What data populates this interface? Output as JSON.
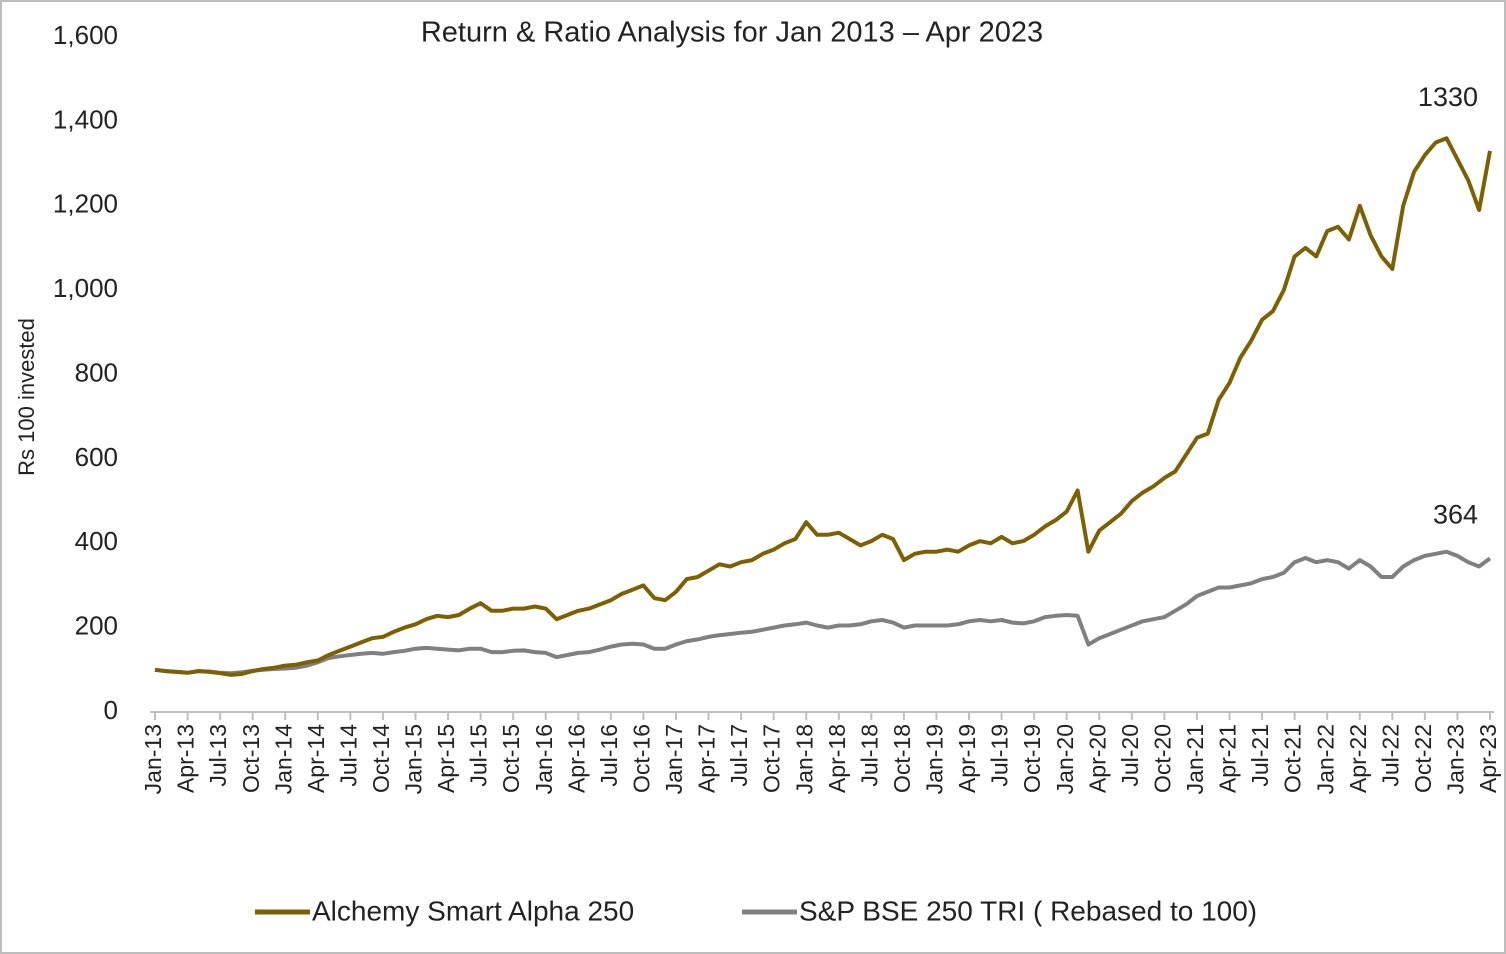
{
  "chart_data": {
    "type": "line",
    "title": "Return & Ratio Analysis for  Jan 2013 – Apr 2023",
    "y_label": "Rs 100 invested",
    "categories": [
      "Jan-13",
      null,
      null,
      "Apr-13",
      null,
      null,
      "Jul-13",
      null,
      null,
      "Oct-13",
      null,
      null,
      "Jan-14",
      null,
      null,
      "Apr-14",
      null,
      null,
      "Jul-14",
      null,
      null,
      "Oct-14",
      null,
      null,
      "Jan-15",
      null,
      null,
      "Apr-15",
      null,
      null,
      "Jul-15",
      null,
      null,
      "Oct-15",
      null,
      null,
      "Jan-16",
      null,
      null,
      "Apr-16",
      null,
      null,
      "Jul-16",
      null,
      null,
      "Oct-16",
      null,
      null,
      "Jan-17",
      null,
      null,
      "Apr-17",
      null,
      null,
      "Jul-17",
      null,
      null,
      "Oct-17",
      null,
      null,
      "Jan-18",
      null,
      null,
      "Apr-18",
      null,
      null,
      "Jul-18",
      null,
      null,
      "Oct-18",
      null,
      null,
      "Jan-19",
      null,
      null,
      "Apr-19",
      null,
      null,
      "Jul-19",
      null,
      null,
      "Oct-19",
      null,
      null,
      "Jan-20",
      null,
      null,
      "Apr-20",
      null,
      null,
      "Jul-20",
      null,
      null,
      "Oct-20",
      null,
      null,
      "Jan-21",
      null,
      null,
      "Apr-21",
      null,
      null,
      "Jul-21",
      null,
      null,
      "Oct-21",
      null,
      null,
      "Jan-22",
      null,
      null,
      "Apr-22",
      null,
      null,
      "Jul-22",
      null,
      null,
      "Oct-22",
      null,
      null,
      "Jan-23",
      null,
      null,
      "Apr-23"
    ],
    "series": [
      {
        "name": "Alchemy Smart Alpha 250",
        "color": "#7f6000",
        "values": [
          100,
          97,
          95,
          93,
          97,
          95,
          92,
          88,
          90,
          97,
          102,
          105,
          110,
          112,
          118,
          122,
          135,
          145,
          155,
          165,
          175,
          178,
          190,
          200,
          208,
          220,
          228,
          225,
          230,
          245,
          258,
          240,
          240,
          245,
          245,
          250,
          245,
          220,
          230,
          240,
          245,
          255,
          265,
          280,
          290,
          300,
          270,
          265,
          285,
          315,
          320,
          335,
          350,
          345,
          355,
          360,
          375,
          385,
          400,
          410,
          450,
          420,
          420,
          425,
          410,
          395,
          405,
          420,
          410,
          360,
          375,
          380,
          380,
          385,
          380,
          395,
          405,
          400,
          415,
          400,
          405,
          420,
          440,
          455,
          475,
          525,
          380,
          430,
          450,
          470,
          500,
          520,
          535,
          555,
          570,
          610,
          650,
          660,
          740,
          780,
          840,
          880,
          930,
          950,
          1000,
          1080,
          1100,
          1080,
          1140,
          1150,
          1120,
          1200,
          1130,
          1080,
          1050,
          1200,
          1280,
          1320,
          1350,
          1360,
          1310,
          1260,
          1190,
          1330
        ]
      },
      {
        "name": "S&P BSE 250 TRI ( Rebased to 100)",
        "color": "#808080",
        "values": [
          100,
          97,
          95,
          93,
          97,
          96,
          93,
          92,
          94,
          98,
          100,
          102,
          103,
          105,
          110,
          118,
          128,
          132,
          135,
          138,
          140,
          138,
          142,
          145,
          150,
          152,
          150,
          148,
          146,
          150,
          150,
          142,
          142,
          145,
          146,
          142,
          140,
          130,
          135,
          140,
          142,
          148,
          155,
          160,
          162,
          160,
          150,
          150,
          160,
          168,
          172,
          178,
          182,
          185,
          188,
          190,
          195,
          200,
          205,
          208,
          212,
          205,
          200,
          205,
          205,
          208,
          215,
          218,
          212,
          200,
          205,
          205,
          205,
          205,
          208,
          215,
          218,
          215,
          218,
          212,
          210,
          215,
          225,
          228,
          230,
          228,
          160,
          175,
          185,
          195,
          205,
          215,
          220,
          225,
          240,
          255,
          275,
          285,
          295,
          295,
          300,
          305,
          315,
          320,
          330,
          355,
          365,
          355,
          360,
          355,
          340,
          360,
          345,
          320,
          320,
          345,
          360,
          370,
          375,
          380,
          370,
          355,
          345,
          364
        ]
      }
    ],
    "annotations": [
      "1330",
      "364"
    ],
    "ylim": [
      0,
      1600
    ],
    "yticks": [
      0,
      200,
      400,
      600,
      800,
      {
        "value": 1000,
        "label": "1,000"
      },
      {
        "value": 1200,
        "label": "1,200"
      },
      {
        "value": 1400,
        "label": "1,400"
      },
      {
        "value": 1600,
        "label": "1,600"
      }
    ],
    "grid": false,
    "legend": "bottom"
  }
}
